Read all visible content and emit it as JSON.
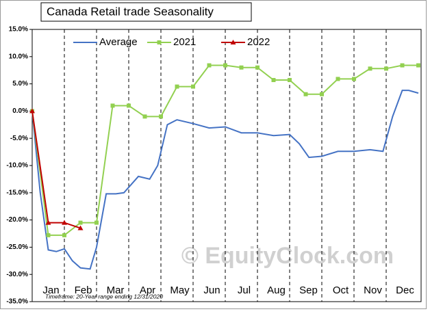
{
  "chart_data": {
    "type": "line",
    "title": "Canada  Retail trade Seasonality",
    "footnote": "Timeframe: 20-Year range ending 12/31/2020",
    "watermark": "© EquityClock.com",
    "xlim": [
      0,
      12
    ],
    "xticks": [
      {
        "value": 0.5,
        "label": "Jan"
      },
      {
        "value": 1.5,
        "label": "Feb"
      },
      {
        "value": 2.5,
        "label": "Mar"
      },
      {
        "value": 3.5,
        "label": "Apr"
      },
      {
        "value": 4.5,
        "label": "May"
      },
      {
        "value": 5.5,
        "label": "Jun"
      },
      {
        "value": 6.5,
        "label": "Jul"
      },
      {
        "value": 7.5,
        "label": "Aug"
      },
      {
        "value": 8.5,
        "label": "Sep"
      },
      {
        "value": 9.5,
        "label": "Oct"
      },
      {
        "value": 10.5,
        "label": "Nov"
      },
      {
        "value": 11.5,
        "label": "Dec"
      }
    ],
    "xgrid": [
      1,
      2,
      3,
      4,
      5,
      6,
      7,
      8,
      9,
      10,
      11
    ],
    "ylim": [
      -35,
      15
    ],
    "yticks": [
      {
        "value": 15,
        "label": "15.0%"
      },
      {
        "value": 10,
        "label": "10.0%"
      },
      {
        "value": 5,
        "label": "5.0%"
      },
      {
        "value": 0,
        "label": "0.0%"
      },
      {
        "value": -5,
        "label": "-5.0%"
      },
      {
        "value": -10,
        "label": "-10.0%"
      },
      {
        "value": -15,
        "label": "-15.0%"
      },
      {
        "value": -20,
        "label": "-20.0%"
      },
      {
        "value": -25,
        "label": "-25.0%"
      },
      {
        "value": -30,
        "label": "-30.0%"
      },
      {
        "value": -35,
        "label": "-35.0%"
      }
    ],
    "legend": "top",
    "series": [
      {
        "name": "Average",
        "color": "#4472c4",
        "marker": "none",
        "x": [
          0,
          0.25,
          0.5,
          0.75,
          1.0,
          1.25,
          1.5,
          1.8,
          2.0,
          2.3,
          2.6,
          2.85,
          3.3,
          3.65,
          3.9,
          4.2,
          4.5,
          5.0,
          5.5,
          6.0,
          6.5,
          7.0,
          7.5,
          8.0,
          8.3,
          8.6,
          9.0,
          9.5,
          10.0,
          10.5,
          10.9,
          11.2,
          11.5,
          11.7,
          12.0
        ],
        "values": [
          0,
          -15,
          -25.5,
          -25.8,
          -25.3,
          -27.5,
          -28.8,
          -29,
          -25,
          -15.2,
          -15.2,
          -15,
          -12,
          -12.5,
          -10,
          -2.5,
          -1.6,
          -2.3,
          -3.1,
          -2.9,
          -4.0,
          -4.0,
          -4.5,
          -4.3,
          -6,
          -8.5,
          -8.3,
          -7.4,
          -7.4,
          -7.1,
          -7.4,
          -1,
          3.8,
          3.8,
          3.3
        ]
      },
      {
        "name": "2021",
        "color": "#92d050",
        "marker": "square",
        "x": [
          0,
          0.5,
          1,
          1.5,
          2,
          2.5,
          3,
          3.5,
          4,
          4.5,
          5,
          5.5,
          6,
          6.5,
          7,
          7.5,
          8,
          8.5,
          9,
          9.5,
          10,
          10.5,
          11,
          11.5,
          12
        ],
        "values": [
          0,
          -22.8,
          -22.8,
          -20.5,
          -20.5,
          1,
          1,
          -1,
          -1,
          4.5,
          4.5,
          8.4,
          8.4,
          8,
          8,
          5.7,
          5.7,
          3.1,
          3.1,
          5.9,
          5.9,
          7.8,
          7.8,
          8.4,
          8.4
        ]
      },
      {
        "name": "2022",
        "color": "#c00000",
        "marker": "triangle",
        "x": [
          0,
          0.5,
          1,
          1.5
        ],
        "values": [
          0,
          -20.5,
          -20.5,
          -21.5
        ]
      }
    ]
  }
}
